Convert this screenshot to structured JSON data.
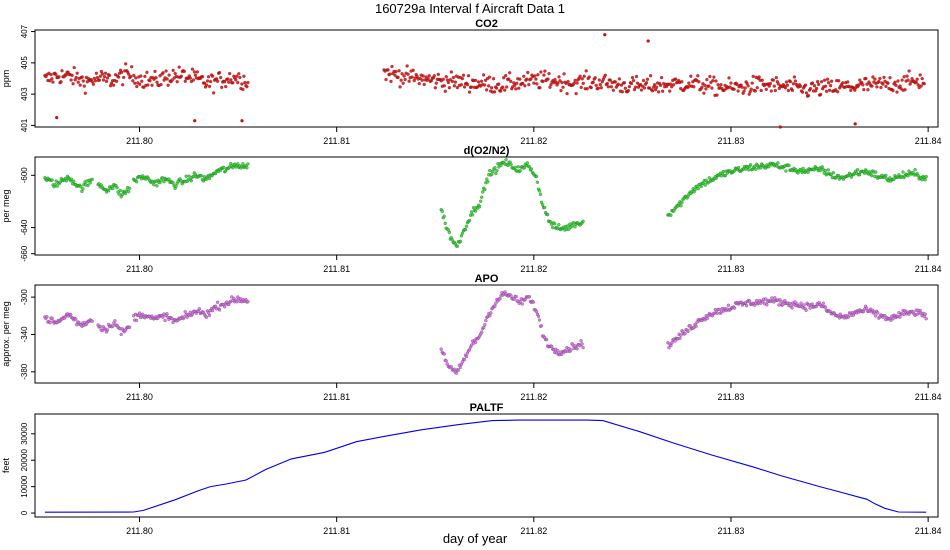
{
  "figure": {
    "title": "160729a   Interval f Aircraft Data 1",
    "xlabel": "day of year"
  },
  "chart_data": [
    {
      "type": "scatter",
      "title": "CO2",
      "ylabel": "ppm",
      "color": "#ee0000",
      "xlim": [
        211.7947,
        211.8405
      ],
      "ylim": [
        400.9,
        407.1
      ],
      "xticks": [
        211.8,
        211.81,
        211.82,
        211.83,
        211.84
      ],
      "xticklabels": [
        "211.80",
        "211.81",
        "211.82",
        "211.83",
        "211.84"
      ],
      "yticks": [
        401,
        403,
        405,
        407
      ],
      "yticklabels": [
        "401",
        "403",
        "405",
        "407"
      ],
      "segments": [
        {
          "x0": 211.7952,
          "x1": 211.8055,
          "y": [
            403.9,
            404.2,
            404.1,
            403.8,
            404.0,
            403.9,
            404.3,
            404.0,
            403.8,
            404.1,
            404.2,
            404.0,
            403.7,
            403.9,
            404.1,
            403.8
          ]
        },
        {
          "x0": 211.8124,
          "x1": 211.8398,
          "y": [
            404.4,
            404.1,
            403.9,
            403.8,
            403.7,
            403.6,
            403.8,
            403.9,
            403.7,
            403.8,
            403.6,
            403.5,
            403.6,
            403.7,
            403.5,
            403.4,
            403.6,
            403.5,
            403.3,
            403.4,
            403.5,
            403.6,
            403.7,
            403.9
          ]
        }
      ],
      "outliers": [
        [
          211.8028,
          401.3
        ],
        [
          211.8236,
          406.8
        ],
        [
          211.8258,
          406.4
        ],
        [
          211.8325,
          400.9
        ],
        [
          211.8363,
          401.1
        ],
        [
          211.8052,
          401.3
        ],
        [
          211.7958,
          401.5
        ]
      ]
    },
    {
      "type": "scatter",
      "title": "d(O2/N2)",
      "ylabel": "per meg",
      "color": "#22dd22",
      "xlim": [
        211.7947,
        211.8405
      ],
      "ylim": [
        -661,
        -586
      ],
      "xticks": [
        211.8,
        211.81,
        211.82,
        211.83,
        211.84
      ],
      "xticklabels": [
        "211.80",
        "211.81",
        "211.82",
        "211.83",
        "211.84"
      ],
      "yticks": [
        -600,
        -640,
        -660
      ],
      "yticklabels": [
        "-600",
        "-640",
        "-660"
      ],
      "segments": [
        {
          "x0": 211.7952,
          "x1": 211.7976,
          "y": [
            -603,
            -607,
            -601,
            -610,
            -604
          ]
        },
        {
          "x0": 211.7979,
          "x1": 211.7995,
          "y": [
            -606,
            -611,
            -608,
            -615,
            -610
          ]
        },
        {
          "x0": 211.7997,
          "x1": 211.8055,
          "y": [
            -604,
            -601,
            -606,
            -603,
            -607,
            -604,
            -600,
            -603,
            -597,
            -595,
            -592,
            -593
          ]
        },
        {
          "x0": 211.8153,
          "x1": 211.8225,
          "y": [
            -626,
            -645,
            -655,
            -640,
            -628,
            -620,
            -600,
            -595,
            -590,
            -593,
            -596,
            -592,
            -600,
            -625,
            -638,
            -641,
            -640,
            -637,
            -636
          ]
        },
        {
          "x0": 211.8268,
          "x1": 211.8399,
          "y": [
            -630,
            -622,
            -612,
            -606,
            -602,
            -598,
            -596,
            -594,
            -593,
            -592,
            -594,
            -596,
            -597,
            -595,
            -600,
            -602,
            -598,
            -597,
            -601,
            -603,
            -600,
            -599,
            -602
          ]
        }
      ]
    },
    {
      "type": "scatter",
      "title": "APO",
      "ylabel": "approx. per meg",
      "color": "#dd66ee",
      "xlim": [
        211.7947,
        211.8405
      ],
      "ylim": [
        -392,
        -287
      ],
      "xticks": [
        211.8,
        211.81,
        211.82,
        211.83,
        211.84
      ],
      "xticklabels": [
        "211.80",
        "211.81",
        "211.82",
        "211.83",
        "211.84"
      ],
      "yticks": [
        -300,
        -340,
        -380
      ],
      "yticklabels": [
        "-300",
        "-340",
        "-380"
      ],
      "segments": [
        {
          "x0": 211.7952,
          "x1": 211.7976,
          "y": [
            -322,
            -328,
            -318,
            -330,
            -324
          ]
        },
        {
          "x0": 211.7979,
          "x1": 211.7995,
          "y": [
            -330,
            -335,
            -326,
            -338,
            -332
          ]
        },
        {
          "x0": 211.7997,
          "x1": 211.8055,
          "y": [
            -322,
            -318,
            -324,
            -320,
            -326,
            -321,
            -315,
            -318,
            -310,
            -306,
            -302,
            -304
          ]
        },
        {
          "x0": 211.8153,
          "x1": 211.8225,
          "y": [
            -355,
            -375,
            -382,
            -365,
            -350,
            -340,
            -318,
            -305,
            -296,
            -300,
            -306,
            -300,
            -312,
            -342,
            -355,
            -358,
            -356,
            -352,
            -350
          ]
        },
        {
          "x0": 211.8268,
          "x1": 211.8399,
          "y": [
            -352,
            -342,
            -332,
            -322,
            -316,
            -312,
            -308,
            -306,
            -305,
            -304,
            -306,
            -308,
            -310,
            -308,
            -318,
            -322,
            -316,
            -314,
            -320,
            -323,
            -318,
            -316,
            -320
          ]
        }
      ]
    },
    {
      "type": "line",
      "title": "PALTF",
      "ylabel": "feet",
      "color": "#0000ee",
      "xlim": [
        211.7947,
        211.8405
      ],
      "ylim": [
        -1500,
        37500
      ],
      "xticks": [
        211.8,
        211.81,
        211.82,
        211.83,
        211.84
      ],
      "xticklabels": [
        "211.80",
        "211.81",
        "211.82",
        "211.83",
        "211.84"
      ],
      "yticks": [
        0,
        10000,
        20000,
        30000
      ],
      "yticklabels": [
        "0",
        "10000",
        "20000",
        "30000"
      ],
      "x": [
        211.7952,
        211.7997,
        211.8002,
        211.8018,
        211.803,
        211.8036,
        211.8044,
        211.8054,
        211.8064,
        211.8077,
        211.8094,
        211.811,
        211.8124,
        211.8143,
        211.8162,
        211.8179,
        211.8192,
        211.821,
        211.8227,
        211.8235,
        211.8253,
        211.8271,
        211.829,
        211.8311,
        211.8325,
        211.8345,
        211.8356,
        211.8364,
        211.8369,
        211.8373,
        211.8378,
        211.8385,
        211.8399
      ],
      "y": [
        300,
        400,
        1000,
        5000,
        8500,
        10000,
        11000,
        12500,
        16500,
        20500,
        23000,
        27000,
        29000,
        31500,
        33500,
        35000,
        35200,
        35200,
        35200,
        35000,
        31000,
        26500,
        22000,
        17500,
        14200,
        10000,
        7800,
        6200,
        5200,
        3500,
        1800,
        400,
        300
      ]
    }
  ]
}
